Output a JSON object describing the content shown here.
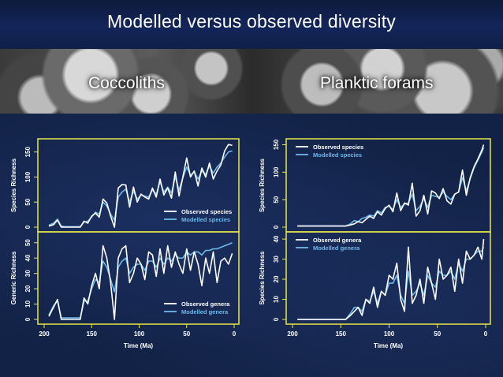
{
  "title": "Modelled versus observed diversity",
  "photo_labels": {
    "left": "Coccoliths",
    "right": "Planktic forams"
  },
  "colors": {
    "observed": "#ffffff",
    "modelled": "#6fb8ea",
    "frame": "#e8e84a",
    "background": "#122246"
  },
  "chart_data": [
    {
      "type": "line",
      "panel": "coccoliths-species",
      "ylabel": "Species Richness",
      "xlim": [
        200,
        0
      ],
      "ylim": [
        0,
        170
      ],
      "yticks": [
        0,
        50,
        100,
        150
      ],
      "legend": [
        "Observed species",
        "Modelled species"
      ],
      "legend_position": "bottom-right",
      "series": [
        {
          "name": "Observed species",
          "x": [
            195,
            190,
            186,
            182,
            178,
            174,
            170,
            166,
            162,
            158,
            154,
            150,
            146,
            142,
            138,
            134,
            130,
            126,
            122,
            118,
            114,
            110,
            106,
            102,
            98,
            94,
            90,
            86,
            82,
            78,
            74,
            70,
            66,
            62,
            58,
            54,
            50,
            46,
            42,
            38,
            34,
            30,
            26,
            22,
            18,
            14,
            10,
            6,
            2
          ],
          "y": [
            2,
            5,
            14,
            0,
            0,
            0,
            0,
            0,
            0,
            12,
            8,
            22,
            28,
            20,
            56,
            48,
            22,
            0,
            78,
            85,
            84,
            40,
            80,
            50,
            66,
            60,
            56,
            78,
            60,
            96,
            64,
            78,
            58,
            110,
            62,
            100,
            138,
            100,
            112,
            82,
            118,
            100,
            128,
            96,
            112,
            124,
            152,
            165,
            163
          ]
        },
        {
          "name": "Modelled species",
          "x": [
            195,
            190,
            186,
            182,
            178,
            174,
            170,
            166,
            162,
            158,
            154,
            150,
            146,
            142,
            138,
            134,
            130,
            126,
            122,
            118,
            114,
            110,
            106,
            102,
            98,
            94,
            90,
            86,
            82,
            78,
            74,
            70,
            66,
            62,
            58,
            54,
            50,
            46,
            42,
            38,
            34,
            30,
            26,
            22,
            18,
            14,
            10,
            6,
            2
          ],
          "y": [
            4,
            8,
            16,
            2,
            1,
            1,
            1,
            1,
            1,
            10,
            12,
            20,
            30,
            26,
            50,
            42,
            26,
            14,
            60,
            70,
            76,
            50,
            72,
            56,
            64,
            62,
            60,
            74,
            66,
            90,
            70,
            80,
            68,
            100,
            74,
            98,
            120,
            104,
            110,
            96,
            112,
            106,
            122,
            108,
            120,
            128,
            140,
            150,
            152
          ]
        }
      ]
    },
    {
      "type": "line",
      "panel": "coccoliths-genera",
      "ylabel": "Generic Richness",
      "xlabel": "Time (Ma)",
      "xlim": [
        200,
        0
      ],
      "ylim": [
        0,
        55
      ],
      "xticks": [
        200,
        150,
        100,
        50,
        0
      ],
      "yticks": [
        0,
        10,
        20,
        30,
        40,
        50
      ],
      "legend": [
        "Observed genera",
        "Modelled genera"
      ],
      "legend_position": "bottom-right",
      "series": [
        {
          "name": "Observed genera",
          "x": [
            195,
            190,
            186,
            182,
            178,
            174,
            170,
            166,
            162,
            158,
            154,
            150,
            146,
            142,
            138,
            134,
            130,
            126,
            122,
            118,
            114,
            110,
            106,
            102,
            98,
            94,
            90,
            86,
            82,
            78,
            74,
            70,
            66,
            62,
            58,
            54,
            50,
            46,
            42,
            38,
            34,
            30,
            26,
            22,
            18,
            14,
            10,
            6,
            2
          ],
          "y": [
            2,
            8,
            13,
            0,
            0,
            0,
            0,
            0,
            0,
            14,
            10,
            22,
            30,
            20,
            48,
            40,
            24,
            0,
            40,
            46,
            48,
            24,
            30,
            40,
            36,
            26,
            44,
            42,
            28,
            46,
            30,
            48,
            34,
            44,
            36,
            30,
            46,
            32,
            44,
            36,
            22,
            40,
            30,
            44,
            24,
            38,
            40,
            36,
            43
          ]
        },
        {
          "name": "Modelled genera",
          "x": [
            195,
            190,
            186,
            182,
            178,
            174,
            170,
            166,
            162,
            158,
            154,
            150,
            146,
            142,
            138,
            134,
            130,
            126,
            122,
            118,
            114,
            110,
            106,
            102,
            98,
            94,
            90,
            86,
            82,
            78,
            74,
            70,
            66,
            62,
            58,
            54,
            50,
            46,
            42,
            38,
            34,
            30,
            26,
            22,
            18,
            14,
            10,
            6,
            2
          ],
          "y": [
            3,
            9,
            12,
            1,
            1,
            1,
            1,
            1,
            1,
            12,
            12,
            20,
            26,
            24,
            38,
            34,
            26,
            18,
            34,
            38,
            40,
            30,
            34,
            36,
            36,
            32,
            38,
            38,
            34,
            40,
            36,
            40,
            38,
            42,
            40,
            40,
            44,
            42,
            44,
            44,
            42,
            45,
            45,
            46,
            46,
            47,
            48,
            49,
            50
          ]
        }
      ]
    },
    {
      "type": "line",
      "panel": "forams-species",
      "ylabel": "Species Richness",
      "xlim": [
        200,
        0
      ],
      "ylim": [
        0,
        155
      ],
      "yticks": [
        0,
        50,
        100,
        150
      ],
      "legend": [
        "Observed species",
        "Modelled species"
      ],
      "legend_position": "top-left",
      "series": [
        {
          "name": "Observed species",
          "x": [
            195,
            185,
            175,
            165,
            155,
            145,
            140,
            136,
            132,
            128,
            124,
            120,
            116,
            112,
            108,
            104,
            100,
            96,
            92,
            88,
            84,
            80,
            76,
            72,
            68,
            64,
            60,
            56,
            52,
            48,
            44,
            40,
            36,
            32,
            28,
            24,
            20,
            16,
            12,
            8,
            4,
            2
          ],
          "y": [
            2,
            2,
            2,
            2,
            2,
            2,
            4,
            6,
            10,
            8,
            14,
            20,
            16,
            28,
            22,
            34,
            40,
            28,
            62,
            30,
            44,
            40,
            80,
            20,
            30,
            58,
            24,
            66,
            62,
            52,
            70,
            48,
            42,
            60,
            64,
            104,
            58,
            90,
            110,
            124,
            140,
            150
          ]
        },
        {
          "name": "Modelled species",
          "x": [
            195,
            185,
            175,
            165,
            155,
            145,
            140,
            136,
            132,
            128,
            124,
            120,
            116,
            112,
            108,
            104,
            100,
            96,
            92,
            88,
            84,
            80,
            76,
            72,
            68,
            64,
            60,
            56,
            52,
            48,
            44,
            40,
            36,
            32,
            28,
            24,
            20,
            16,
            12,
            8,
            4,
            2
          ],
          "y": [
            2,
            2,
            2,
            2,
            2,
            2,
            6,
            12,
            10,
            16,
            18,
            22,
            20,
            30,
            26,
            36,
            38,
            32,
            50,
            36,
            42,
            44,
            60,
            30,
            38,
            52,
            36,
            58,
            56,
            54,
            64,
            56,
            50,
            60,
            64,
            90,
            66,
            88,
            108,
            122,
            136,
            145
          ]
        }
      ]
    },
    {
      "type": "line",
      "panel": "forams-genera",
      "ylabel": "Species Richness",
      "xlabel": "Time (Ma)",
      "xlim": [
        200,
        0
      ],
      "ylim": [
        0,
        42
      ],
      "xticks": [
        200,
        150,
        100,
        50,
        0
      ],
      "yticks": [
        0,
        10,
        20,
        30,
        40
      ],
      "legend": [
        "Observed genera",
        "Modelled genera"
      ],
      "legend_position": "top-left",
      "series": [
        {
          "name": "Observed genera",
          "x": [
            195,
            185,
            175,
            165,
            155,
            145,
            140,
            136,
            132,
            128,
            124,
            120,
            116,
            112,
            108,
            104,
            100,
            96,
            92,
            88,
            84,
            80,
            76,
            72,
            68,
            64,
            60,
            56,
            52,
            48,
            44,
            40,
            36,
            32,
            28,
            24,
            20,
            16,
            12,
            8,
            4,
            2
          ],
          "y": [
            0,
            0,
            0,
            0,
            0,
            0,
            2,
            4,
            6,
            2,
            10,
            8,
            16,
            6,
            14,
            12,
            22,
            20,
            28,
            10,
            4,
            36,
            8,
            12,
            20,
            8,
            26,
            18,
            10,
            30,
            20,
            22,
            26,
            14,
            30,
            18,
            34,
            30,
            32,
            36,
            30,
            40
          ]
        },
        {
          "name": "Modelled genera",
          "x": [
            195,
            185,
            175,
            165,
            155,
            145,
            140,
            136,
            132,
            128,
            124,
            120,
            116,
            112,
            108,
            104,
            100,
            96,
            92,
            88,
            84,
            80,
            76,
            72,
            68,
            64,
            60,
            56,
            52,
            48,
            44,
            40,
            36,
            32,
            28,
            24,
            20,
            16,
            12,
            8,
            4,
            2
          ],
          "y": [
            0,
            0,
            0,
            0,
            0,
            0,
            3,
            6,
            6,
            4,
            10,
            9,
            14,
            8,
            14,
            12,
            18,
            18,
            22,
            12,
            8,
            24,
            12,
            14,
            18,
            12,
            22,
            18,
            16,
            24,
            22,
            22,
            24,
            20,
            28,
            24,
            30,
            30,
            32,
            34,
            34,
            36
          ]
        }
      ]
    }
  ]
}
